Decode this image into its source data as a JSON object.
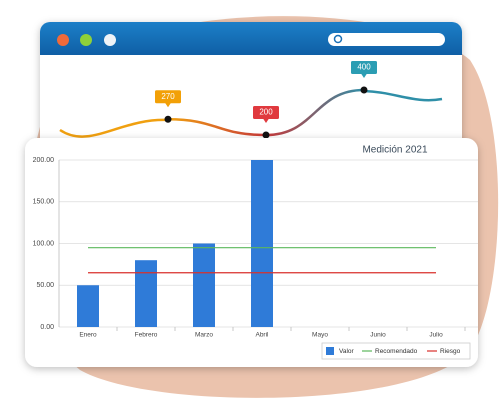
{
  "chart_data": [
    {
      "type": "line",
      "values": [
        270,
        200,
        400
      ],
      "colors": [
        "#f2a007",
        "#e0393e",
        "#2b9db3"
      ]
    },
    {
      "type": "bar",
      "title": "Medición 2021",
      "categories": [
        "Enero",
        "Febrero",
        "Marzo",
        "Abril",
        "Mayo",
        "Junio",
        "Julio"
      ],
      "series": [
        {
          "name": "Valor",
          "type": "bar",
          "color": "#2f7bd8",
          "values": [
            50,
            80,
            100,
            200,
            null,
            null,
            null
          ]
        },
        {
          "name": "Recomendado",
          "type": "line",
          "color": "#5cb85c",
          "values": [
            95,
            95,
            95,
            95,
            95,
            95,
            95
          ]
        },
        {
          "name": "Riesgo",
          "type": "line",
          "color": "#d9302c",
          "values": [
            65,
            65,
            65,
            65,
            65,
            65,
            65
          ]
        }
      ],
      "ylim": [
        0,
        200
      ],
      "yticks": [
        {
          "value": 0,
          "label": "0.00"
        },
        {
          "value": 50,
          "label": "50.00"
        },
        {
          "value": 100,
          "label": "100.00"
        },
        {
          "value": 150,
          "label": "150.00"
        },
        {
          "value": 200,
          "label": "200.00"
        }
      ],
      "grid": true,
      "legend": "bottom-right"
    }
  ]
}
